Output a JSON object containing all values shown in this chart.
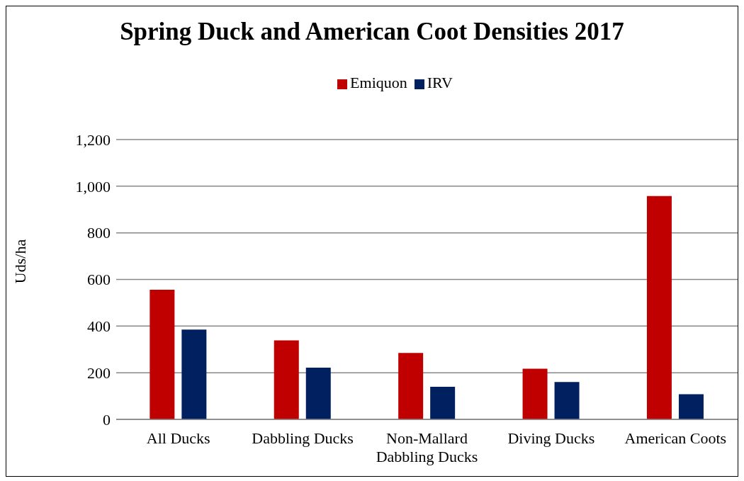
{
  "chart_data": {
    "type": "bar",
    "title": "Spring Duck and American Coot Densities 2017",
    "ylabel": "Uds/ha",
    "categories": [
      "All Ducks",
      "Dabbling Ducks",
      "Non-Mallard Dabbling Ducks",
      "Diving Ducks",
      "American Coots"
    ],
    "series": [
      {
        "name": "Emiquon",
        "color": "#c00000",
        "values": [
          556,
          339,
          285,
          217,
          958
        ]
      },
      {
        "name": "IRV",
        "color": "#002060",
        "values": [
          385,
          222,
          140,
          160,
          108
        ]
      }
    ],
    "ylim": [
      0,
      1200
    ],
    "yticks": [
      0,
      {
        "value": 200,
        "label": "200"
      },
      {
        "value": 400,
        "label": "400"
      },
      {
        "value": 600,
        "label": "600"
      },
      {
        "value": 800,
        "label": "800"
      },
      {
        "value": 1000,
        "label": "1,000"
      },
      {
        "value": 1200,
        "label": "1,200"
      }
    ],
    "grid": "y",
    "legend": "top"
  }
}
